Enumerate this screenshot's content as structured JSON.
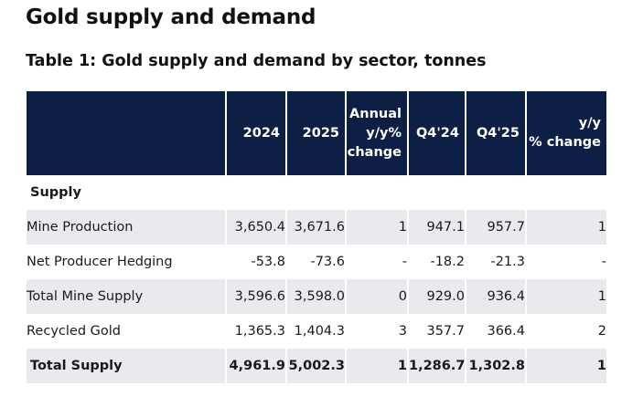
{
  "page": {
    "title": "Gold supply and demand",
    "table_title": "Table 1: Gold supply and demand by sector, tonnes"
  },
  "table": {
    "headers": {
      "label": "",
      "y2024": "2024",
      "y2025": "2025",
      "annual_line1": "Annual",
      "annual_line2": "y/y%",
      "annual_line3": "change",
      "q424": "Q4'24",
      "q425": "Q4'25",
      "yy_line1": "y/y",
      "yy_line2": "% change"
    },
    "section_label": "Supply",
    "rows": [
      {
        "label": "Mine Production",
        "y2024": "3,650.4",
        "y2025": "3,671.6",
        "annual": "1",
        "q424": "947.1",
        "q425": "957.7",
        "yy": "1"
      },
      {
        "label": "Net Producer Hedging",
        "y2024": "-53.8",
        "y2025": "-73.6",
        "annual": "-",
        "q424": "-18.2",
        "q425": "-21.3",
        "yy": "-"
      },
      {
        "label": "Total Mine Supply",
        "y2024": "3,596.6",
        "y2025": "3,598.0",
        "annual": "0",
        "q424": "929.0",
        "q425": "936.4",
        "yy": "1"
      },
      {
        "label": "Recycled Gold",
        "y2024": "1,365.3",
        "y2025": "1,404.3",
        "annual": "3",
        "q424": "357.7",
        "q425": "366.4",
        "yy": "2"
      }
    ],
    "total": {
      "label": "Total Supply",
      "y2024": "4,961.9",
      "y2025": "5,002.3",
      "annual": "1",
      "q424": "1,286.7",
      "q425": "1,302.8",
      "yy": "1"
    }
  }
}
